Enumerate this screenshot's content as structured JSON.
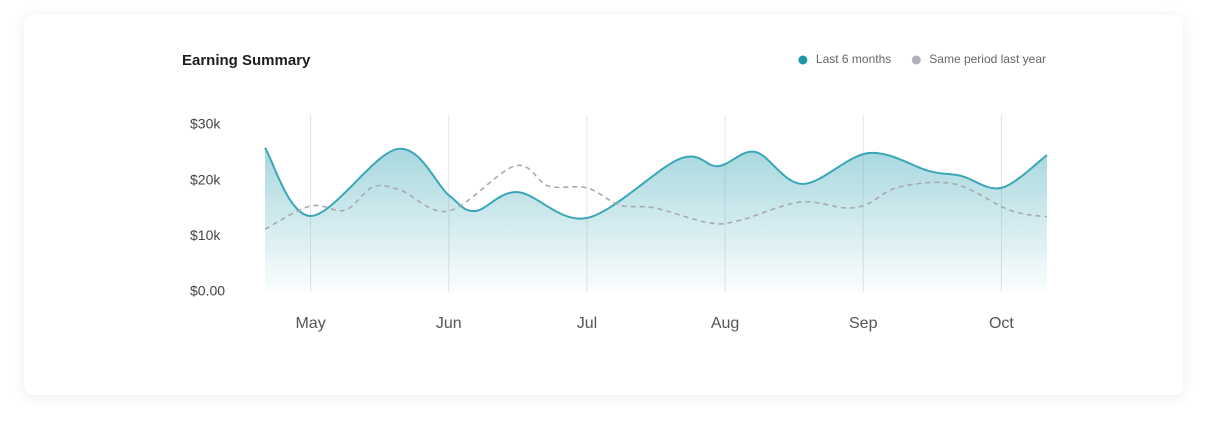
{
  "chart_data": {
    "type": "area-line",
    "title": "Earning Summary",
    "xlim": [
      -0.33,
      5.33
    ],
    "xticks": [
      {
        "value": 0,
        "label": "May"
      },
      {
        "value": 1,
        "label": "Jun"
      },
      {
        "value": 2,
        "label": "Jul"
      },
      {
        "value": 3,
        "label": "Aug"
      },
      {
        "value": 4,
        "label": "Sep"
      },
      {
        "value": 5,
        "label": "Oct"
      }
    ],
    "ylim": [
      0,
      30000
    ],
    "yticks": [
      {
        "value": 0,
        "label": "$0.00"
      },
      {
        "value": 10000,
        "label": "$10k"
      },
      {
        "value": 20000,
        "label": "$20k"
      },
      {
        "value": 30000,
        "label": "$30k"
      }
    ],
    "grid": true,
    "legend": "top-right",
    "series": [
      {
        "name": "Last 6 months",
        "color": "#3aa7b7",
        "marker_color": "#2196a8",
        "fill": true,
        "dashed": false,
        "x": [
          -0.33,
          0,
          0.63,
          1,
          1.19,
          1.5,
          2,
          2.67,
          2.95,
          3.22,
          3.56,
          4.04,
          4.48,
          4.71,
          5,
          5.33
        ],
        "values": [
          25900,
          13650,
          25700,
          17400,
          14550,
          17950,
          13300,
          23900,
          22600,
          25150,
          19400,
          24970,
          21700,
          20850,
          18700,
          24600
        ]
      },
      {
        "name": "Same period last year",
        "color": "#a9a9ae",
        "marker_color": "#b0b0b8",
        "fill": false,
        "dashed": true,
        "x": [
          -0.33,
          0,
          0.25,
          0.45,
          0.65,
          1,
          1.48,
          1.72,
          2,
          2.24,
          2.49,
          2.89,
          3.11,
          3.54,
          3.87,
          4.03,
          4.26,
          4.66,
          5.06,
          5.33
        ],
        "values": [
          11300,
          15450,
          14700,
          18850,
          18300,
          14550,
          22650,
          19050,
          18700,
          15600,
          15100,
          12400,
          12900,
          16150,
          15100,
          15800,
          18850,
          19400,
          14700,
          13500
        ]
      }
    ]
  }
}
